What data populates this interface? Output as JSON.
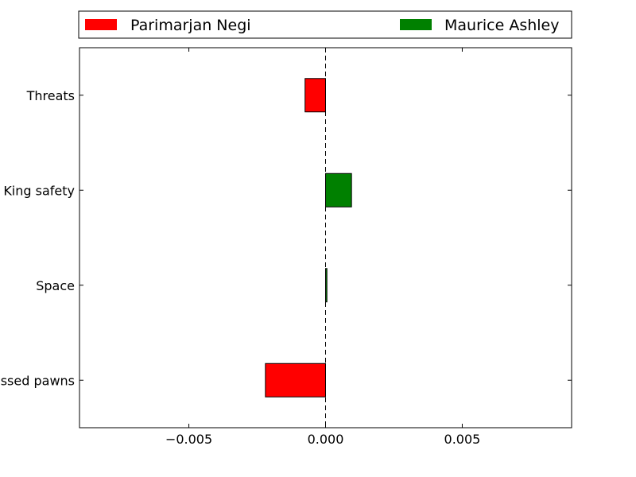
{
  "chart_data": {
    "type": "bar",
    "orientation": "horizontal",
    "categories": [
      "Threats",
      "King safety",
      "Space",
      "Passed pawns"
    ],
    "series": [
      {
        "name": "Parimarjan Negi",
        "color": "#ff0000",
        "values": [
          -0.00075,
          0,
          0,
          -0.0022
        ]
      },
      {
        "name": "Maurice Ashley",
        "color": "#008000",
        "values": [
          0,
          0.00095,
          5e-05,
          0
        ]
      }
    ],
    "x_ticks": [
      -0.005,
      0.0,
      0.005
    ],
    "x_tick_labels": [
      "−0.005",
      "0.000",
      "0.005"
    ],
    "xlim": [
      -0.009,
      0.009
    ],
    "zero_line": "dashed",
    "grid": false,
    "legend_position": "top, above plot"
  }
}
